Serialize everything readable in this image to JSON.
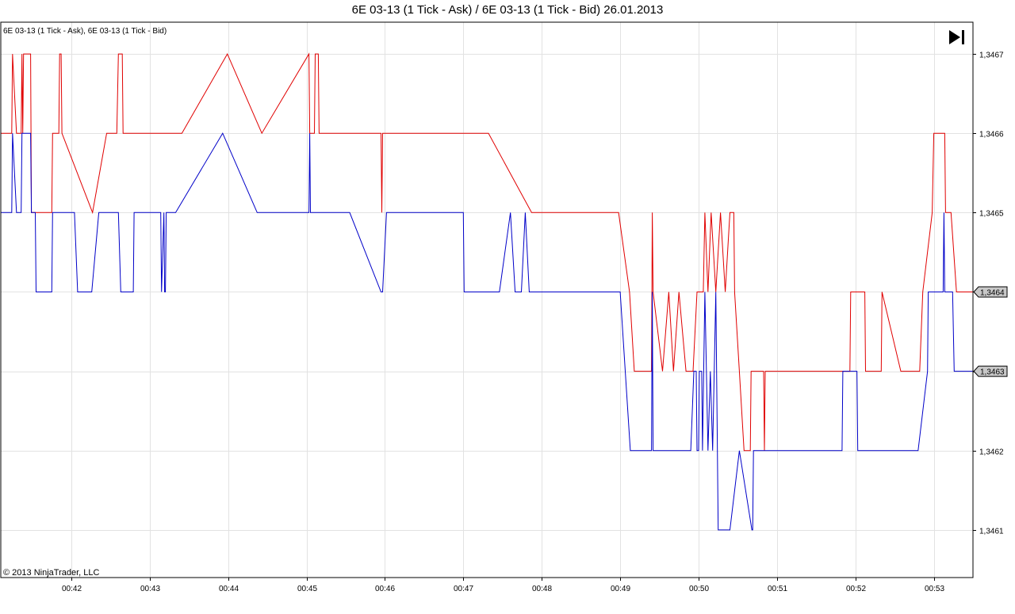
{
  "title": "6E 03-13 (1 Tick - Ask) / 6E 03-13 (1 Tick - Bid)  26.01.2013",
  "legend": "6E 03-13 (1 Tick - Ask), 6E 03-13 (1 Tick - Bid)",
  "copyright": "© 2013 NinjaTrader, LLC",
  "scroll_icon": "skip-to-end-icon",
  "colors": {
    "ask": "#e00000",
    "bid": "#0000c8",
    "grid": "#e2e2e2",
    "frame": "#000000",
    "badge": "#c8c8c8"
  },
  "chart_data": {
    "type": "line",
    "title": "6E 03-13 (1 Tick - Ask) / 6E 03-13 (1 Tick - Bid)  26.01.2013",
    "x_unit": "minutes after 00:00",
    "xlim": [
      41.1,
      53.5
    ],
    "ylim": [
      1.34604,
      1.34674
    ],
    "x_ticks": [
      "00:42",
      "00:43",
      "00:44",
      "00:45",
      "00:46",
      "00:47",
      "00:48",
      "00:49",
      "00:50",
      "00:51",
      "00:52",
      "00:53"
    ],
    "x_tick_values": [
      42,
      43,
      44,
      45,
      46,
      47,
      48,
      49,
      50,
      51,
      52,
      53
    ],
    "y_ticks": [
      "1,3461",
      "1,3462",
      "1,3463",
      "1,3464",
      "1,3465",
      "1,3466",
      "1,3467"
    ],
    "y_tick_values": [
      1.3461,
      1.3462,
      1.3463,
      1.3464,
      1.3465,
      1.3466,
      1.3467
    ],
    "last_values": [
      {
        "series": "ask",
        "label": "1,3464",
        "value": 1.3464
      },
      {
        "series": "bid",
        "label": "1,3463",
        "value": 1.3463
      }
    ],
    "grid": true,
    "series": [
      {
        "key": "ask",
        "color": "#e00000",
        "points": [
          [
            41.1,
            1.3466
          ],
          [
            41.24,
            1.3466
          ],
          [
            41.25,
            1.3467
          ],
          [
            41.3,
            1.3466
          ],
          [
            41.36,
            1.3466
          ],
          [
            41.37,
            1.3467
          ],
          [
            41.38,
            1.3466
          ],
          [
            41.39,
            1.3467
          ],
          [
            41.48,
            1.3467
          ],
          [
            41.49,
            1.3465
          ],
          [
            41.75,
            1.3465
          ],
          [
            41.76,
            1.3466
          ],
          [
            41.84,
            1.3466
          ],
          [
            41.85,
            1.3467
          ],
          [
            41.87,
            1.3467
          ],
          [
            41.88,
            1.3466
          ],
          [
            42.27,
            1.3465
          ],
          [
            42.45,
            1.3466
          ],
          [
            42.58,
            1.3466
          ],
          [
            42.6,
            1.3467
          ],
          [
            42.65,
            1.3467
          ],
          [
            42.66,
            1.3466
          ],
          [
            43.41,
            1.3466
          ],
          [
            43.99,
            1.3467
          ],
          [
            44.43,
            1.3466
          ],
          [
            45.03,
            1.3467
          ],
          [
            45.04,
            1.3466
          ],
          [
            45.1,
            1.3466
          ],
          [
            45.11,
            1.3467
          ],
          [
            45.15,
            1.3467
          ],
          [
            45.16,
            1.3466
          ],
          [
            45.95,
            1.3466
          ],
          [
            45.96,
            1.3465
          ],
          [
            45.97,
            1.3466
          ],
          [
            47.32,
            1.3466
          ],
          [
            47.87,
            1.3465
          ],
          [
            48.98,
            1.3465
          ],
          [
            49.12,
            1.3464
          ],
          [
            49.18,
            1.3463
          ],
          [
            49.4,
            1.3463
          ],
          [
            49.41,
            1.3465
          ],
          [
            49.42,
            1.3464
          ],
          [
            49.54,
            1.3463
          ],
          [
            49.62,
            1.3464
          ],
          [
            49.68,
            1.3463
          ],
          [
            49.75,
            1.3464
          ],
          [
            49.84,
            1.3463
          ],
          [
            49.93,
            1.3463
          ],
          [
            49.98,
            1.3464
          ],
          [
            50.06,
            1.3464
          ],
          [
            50.08,
            1.3465
          ],
          [
            50.12,
            1.3464
          ],
          [
            50.16,
            1.3465
          ],
          [
            50.22,
            1.3464
          ],
          [
            50.28,
            1.3465
          ],
          [
            50.34,
            1.3464
          ],
          [
            50.4,
            1.3465
          ],
          [
            50.45,
            1.3465
          ],
          [
            50.46,
            1.3464
          ],
          [
            50.52,
            1.3463
          ],
          [
            50.58,
            1.3462
          ],
          [
            50.66,
            1.3462
          ],
          [
            50.67,
            1.3463
          ],
          [
            50.83,
            1.3463
          ],
          [
            50.84,
            1.3462
          ],
          [
            50.85,
            1.3463
          ],
          [
            51.93,
            1.3463
          ],
          [
            51.94,
            1.3464
          ],
          [
            52.12,
            1.3464
          ],
          [
            52.13,
            1.3463
          ],
          [
            52.33,
            1.3463
          ],
          [
            52.34,
            1.3464
          ],
          [
            52.58,
            1.3463
          ],
          [
            52.82,
            1.3463
          ],
          [
            52.86,
            1.3464
          ],
          [
            52.98,
            1.3465
          ],
          [
            53.0,
            1.3466
          ],
          [
            53.14,
            1.3466
          ],
          [
            53.15,
            1.3465
          ],
          [
            53.22,
            1.3465
          ],
          [
            53.29,
            1.3464
          ],
          [
            53.5,
            1.3464
          ]
        ]
      },
      {
        "key": "bid",
        "color": "#0000c8",
        "points": [
          [
            41.1,
            1.3465
          ],
          [
            41.24,
            1.3465
          ],
          [
            41.25,
            1.3466
          ],
          [
            41.3,
            1.3465
          ],
          [
            41.36,
            1.3465
          ],
          [
            41.37,
            1.3466
          ],
          [
            41.48,
            1.3466
          ],
          [
            41.49,
            1.3465
          ],
          [
            41.54,
            1.3465
          ],
          [
            41.55,
            1.3464
          ],
          [
            41.75,
            1.3464
          ],
          [
            41.76,
            1.3465
          ],
          [
            42.04,
            1.3465
          ],
          [
            42.08,
            1.3464
          ],
          [
            42.26,
            1.3464
          ],
          [
            42.35,
            1.3465
          ],
          [
            42.6,
            1.3465
          ],
          [
            42.63,
            1.3464
          ],
          [
            42.79,
            1.3464
          ],
          [
            42.8,
            1.3465
          ],
          [
            43.14,
            1.3465
          ],
          [
            43.15,
            1.3464
          ],
          [
            43.18,
            1.3465
          ],
          [
            43.19,
            1.3464
          ],
          [
            43.2,
            1.3464
          ],
          [
            43.21,
            1.3465
          ],
          [
            43.33,
            1.3465
          ],
          [
            43.93,
            1.3466
          ],
          [
            44.37,
            1.3465
          ],
          [
            45.03,
            1.3465
          ],
          [
            45.04,
            1.3466
          ],
          [
            45.05,
            1.3465
          ],
          [
            45.55,
            1.3465
          ],
          [
            45.95,
            1.3464
          ],
          [
            45.97,
            1.3464
          ],
          [
            46.02,
            1.3465
          ],
          [
            47.0,
            1.3465
          ],
          [
            47.01,
            1.3464
          ],
          [
            47.46,
            1.3464
          ],
          [
            47.6,
            1.3465
          ],
          [
            47.66,
            1.3464
          ],
          [
            47.74,
            1.3464
          ],
          [
            47.79,
            1.3465
          ],
          [
            47.84,
            1.3464
          ],
          [
            49.0,
            1.3464
          ],
          [
            49.13,
            1.3462
          ],
          [
            49.4,
            1.3462
          ],
          [
            49.41,
            1.3464
          ],
          [
            49.42,
            1.3462
          ],
          [
            49.9,
            1.3462
          ],
          [
            49.94,
            1.3463
          ],
          [
            49.97,
            1.3463
          ],
          [
            49.98,
            1.3462
          ],
          [
            50.0,
            1.3462
          ],
          [
            50.01,
            1.3463
          ],
          [
            50.04,
            1.3463
          ],
          [
            50.05,
            1.3462
          ],
          [
            50.08,
            1.3464
          ],
          [
            50.12,
            1.3462
          ],
          [
            50.15,
            1.3463
          ],
          [
            50.18,
            1.3462
          ],
          [
            50.22,
            1.3464
          ],
          [
            50.25,
            1.3461
          ],
          [
            50.4,
            1.3461
          ],
          [
            50.52,
            1.3462
          ],
          [
            50.68,
            1.3461
          ],
          [
            50.69,
            1.3461
          ],
          [
            50.7,
            1.3462
          ],
          [
            51.83,
            1.3462
          ],
          [
            51.84,
            1.3463
          ],
          [
            52.02,
            1.3463
          ],
          [
            52.03,
            1.3462
          ],
          [
            52.8,
            1.3462
          ],
          [
            52.92,
            1.3463
          ],
          [
            52.93,
            1.3464
          ],
          [
            53.12,
            1.3464
          ],
          [
            53.13,
            1.3465
          ],
          [
            53.14,
            1.3464
          ],
          [
            53.24,
            1.3464
          ],
          [
            53.26,
            1.3463
          ],
          [
            53.5,
            1.3463
          ]
        ]
      }
    ]
  }
}
